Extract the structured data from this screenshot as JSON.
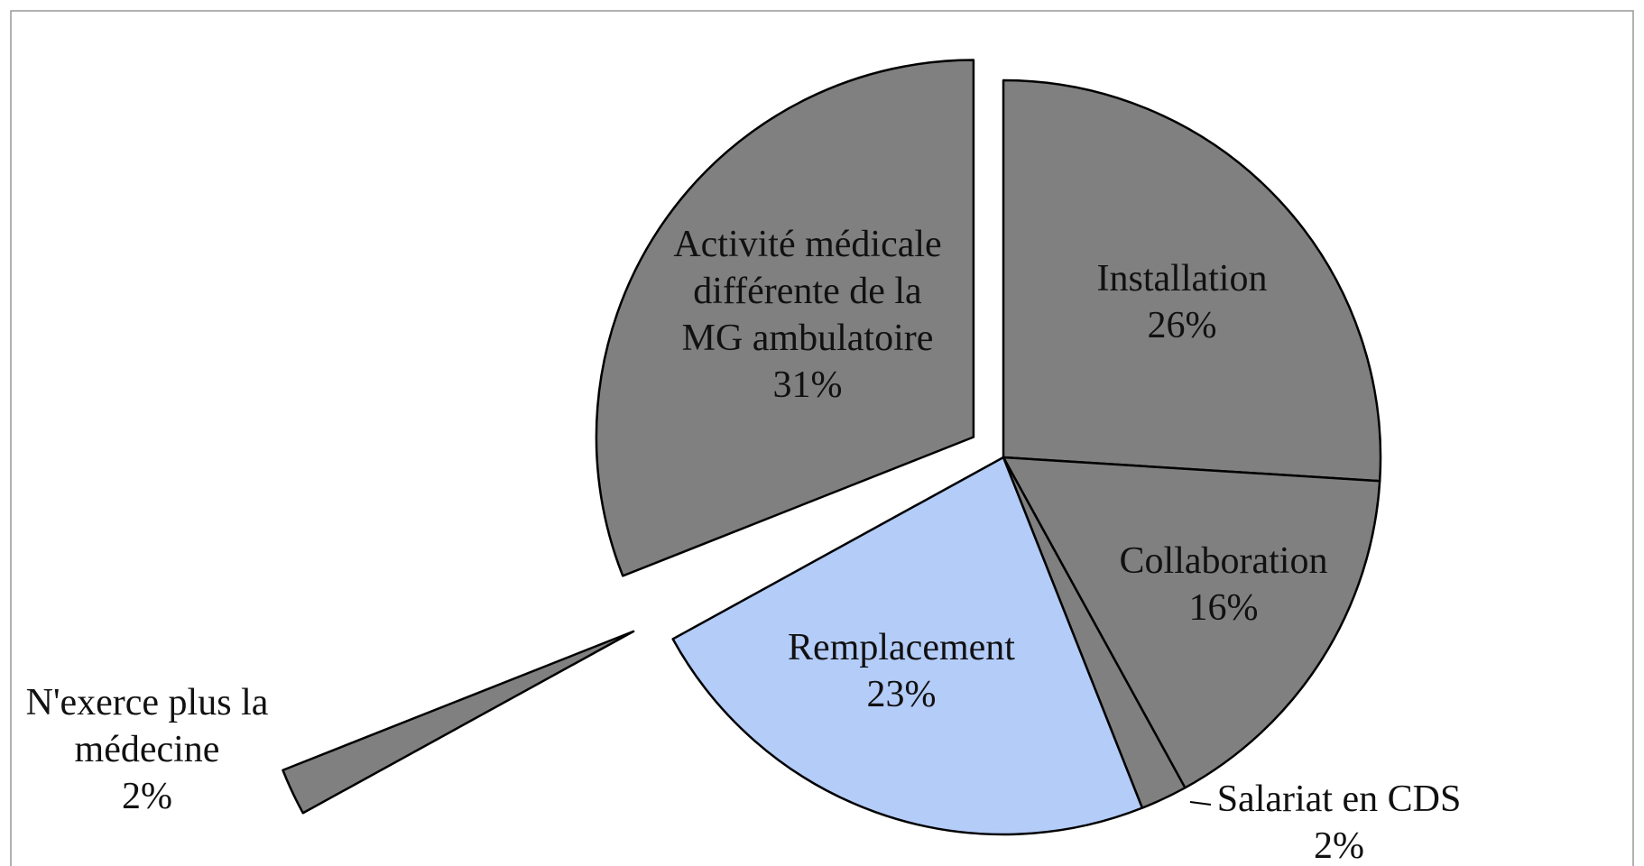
{
  "chart_data": {
    "type": "pie",
    "categories": [
      "Installation",
      "Collaboration",
      "Salariat en CDS",
      "Remplacement",
      "N'exerce plus la médecine",
      "Activité médicale différente de la MG ambulatoire"
    ],
    "values": [
      26,
      16,
      2,
      23,
      2,
      31
    ],
    "value_labels": [
      "26%",
      "16%",
      "2%",
      "23%",
      "2%",
      "31%"
    ],
    "colors": [
      "#808080",
      "#808080",
      "#808080",
      "#b4ccf8",
      "#808080",
      "#808080"
    ]
  }
}
